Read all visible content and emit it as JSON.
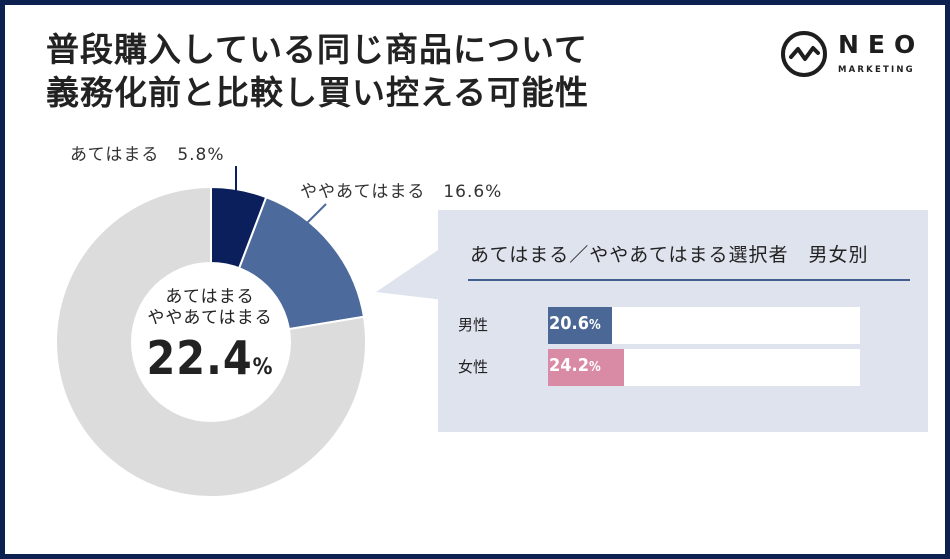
{
  "title": {
    "line1": "普段購入している同じ商品について",
    "line2": "義務化前と比較し買い控える可能性"
  },
  "logo": {
    "word": "NEO",
    "sub": "MARKETING",
    "icon": "pulse-circle-icon"
  },
  "colors": {
    "frame": "#0d2150",
    "apply": "#0a1f5c",
    "somewhat": "#4d6a9c",
    "other": "#dcdcdc",
    "male": "#4a6796",
    "female": "#d98aa5",
    "panel": "#dfe3ee"
  },
  "chart_data": [
    {
      "type": "pie",
      "labels": [
        "あてはまる",
        "ややあてはまる",
        ""
      ],
      "values": [
        5.8,
        16.6,
        77.6
      ],
      "label_texts": [
        "あてはまる　5.8%",
        "ややあてはまる　16.6%"
      ],
      "center": {
        "line1": "あてはまる",
        "line2": "ややあてはまる",
        "value": "22.4",
        "unit": "%"
      }
    },
    {
      "type": "bar",
      "title": "あてはまる／ややあてはまる選択者　男女別",
      "categories": [
        "男性",
        "女性"
      ],
      "values": [
        20.6,
        24.2
      ],
      "value_labels": [
        "20.6",
        "24.2"
      ],
      "unit": "%",
      "xlim": [
        0,
        100
      ]
    }
  ]
}
